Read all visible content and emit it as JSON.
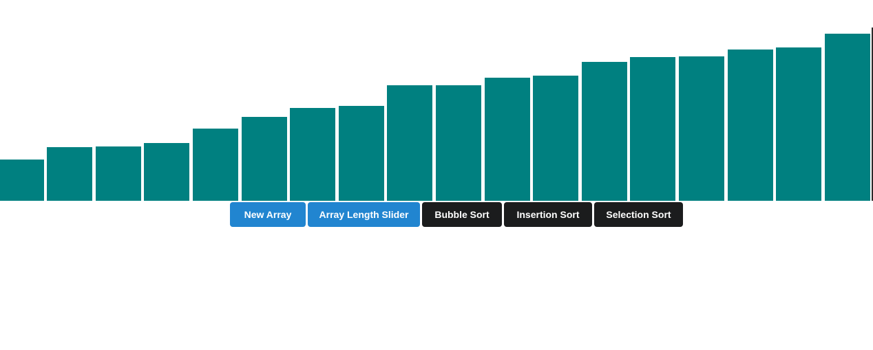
{
  "colors": {
    "bar": "#008080",
    "primary_button": "#2185d0",
    "dark_button": "#1b1c1d",
    "background": "#ffffff"
  },
  "array": {
    "values": [
      60,
      78,
      79,
      84,
      105,
      122,
      135,
      138,
      168,
      168,
      179,
      182,
      202,
      209,
      210,
      220,
      223,
      243
    ],
    "max_value": 243
  },
  "controls": {
    "new_array": "New Array",
    "array_length_slider": "Array Length Slider",
    "bubble_sort": "Bubble Sort",
    "insertion_sort": "Insertion Sort",
    "selection_sort": "Selection Sort"
  }
}
